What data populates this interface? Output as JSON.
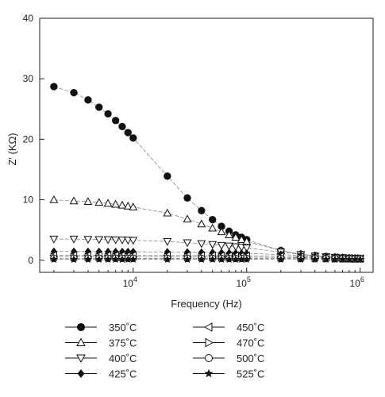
{
  "chart_data": {
    "type": "scatter",
    "title": "",
    "xlabel": "Frequency (Hz)",
    "ylabel": "Z′ (KΩ)",
    "xscale": "log",
    "xlim": [
      1500,
      1300000
    ],
    "ylim": [
      -2,
      40
    ],
    "grid": false,
    "legend_position": "below plot, two columns",
    "x_ticks": [
      {
        "value": 10000,
        "base": "10",
        "exp": "4"
      },
      {
        "value": 100000,
        "base": "10",
        "exp": "5"
      },
      {
        "value": 1000000,
        "base": "10",
        "exp": "6"
      }
    ],
    "y_ticks": [
      0,
      10,
      20,
      30,
      40
    ],
    "x": [
      2000,
      3000,
      4000,
      5000,
      6000,
      7000,
      8000,
      9000,
      10000,
      20000,
      30000,
      40000,
      50000,
      60000,
      70000,
      80000,
      90000,
      100000,
      200000,
      300000,
      400000,
      500000,
      600000,
      700000,
      800000,
      900000,
      1000000
    ],
    "series": [
      {
        "name": "350˚C",
        "marker": "circle-filled",
        "values": [
          28.7,
          27.7,
          26.5,
          25.3,
          24.2,
          23.1,
          22.1,
          21.1,
          20.2,
          13.9,
          10.3,
          8.2,
          6.7,
          5.6,
          4.8,
          4.2,
          3.8,
          3.4,
          1.6,
          1.0,
          0.75,
          0.6,
          0.5,
          0.42,
          0.36,
          0.32,
          0.28
        ]
      },
      {
        "name": "375˚C",
        "marker": "triangle-up-open",
        "values": [
          10.0,
          9.8,
          9.7,
          9.55,
          9.4,
          9.25,
          9.1,
          8.95,
          8.8,
          7.8,
          6.8,
          6.0,
          5.3,
          4.7,
          4.2,
          3.8,
          3.4,
          3.1,
          1.6,
          1.0,
          0.75,
          0.6,
          0.5,
          0.42,
          0.36,
          0.32,
          0.28
        ]
      },
      {
        "name": "400˚C",
        "marker": "triangle-down-open",
        "values": [
          3.5,
          3.5,
          3.45,
          3.42,
          3.4,
          3.38,
          3.35,
          3.32,
          3.3,
          3.1,
          2.9,
          2.75,
          2.6,
          2.45,
          2.35,
          2.25,
          2.15,
          2.05,
          1.35,
          0.95,
          0.72,
          0.58,
          0.48,
          0.41,
          0.35,
          0.31,
          0.27
        ]
      },
      {
        "name": "425˚C",
        "marker": "diamond-filled",
        "values": [
          1.45,
          1.45,
          1.44,
          1.43,
          1.42,
          1.42,
          1.41,
          1.41,
          1.4,
          1.37,
          1.33,
          1.3,
          1.27,
          1.24,
          1.21,
          1.18,
          1.15,
          1.12,
          0.95,
          0.78,
          0.65,
          0.55,
          0.47,
          0.4,
          0.35,
          0.31,
          0.27
        ]
      },
      {
        "name": "450˚C",
        "marker": "triangle-left-open",
        "values": [
          0.82,
          0.82,
          0.82,
          0.81,
          0.81,
          0.81,
          0.81,
          0.8,
          0.8,
          0.79,
          0.78,
          0.77,
          0.76,
          0.75,
          0.74,
          0.73,
          0.72,
          0.71,
          0.65,
          0.58,
          0.52,
          0.47,
          0.42,
          0.38,
          0.34,
          0.3,
          0.27
        ]
      },
      {
        "name": "470˚C",
        "marker": "triangle-right-open",
        "values": [
          0.55,
          0.55,
          0.55,
          0.55,
          0.54,
          0.54,
          0.54,
          0.54,
          0.54,
          0.53,
          0.53,
          0.52,
          0.52,
          0.51,
          0.51,
          0.5,
          0.5,
          0.49,
          0.46,
          0.43,
          0.4,
          0.37,
          0.34,
          0.32,
          0.3,
          0.28,
          0.26
        ]
      },
      {
        "name": "500˚C",
        "marker": "circle-open",
        "values": [
          0.32,
          0.32,
          0.32,
          0.32,
          0.32,
          0.32,
          0.32,
          0.32,
          0.32,
          0.31,
          0.31,
          0.31,
          0.31,
          0.31,
          0.3,
          0.3,
          0.3,
          0.3,
          0.29,
          0.28,
          0.27,
          0.26,
          0.25,
          0.24,
          0.23,
          0.22,
          0.21
        ]
      },
      {
        "name": "525˚C",
        "marker": "star-filled",
        "values": [
          0.15,
          0.15,
          0.15,
          0.15,
          0.15,
          0.15,
          0.15,
          0.15,
          0.15,
          0.15,
          0.15,
          0.15,
          0.15,
          0.15,
          0.15,
          0.15,
          0.15,
          0.15,
          0.14,
          0.14,
          0.14,
          0.14,
          0.13,
          0.13,
          0.13,
          0.13,
          0.13
        ]
      }
    ]
  }
}
